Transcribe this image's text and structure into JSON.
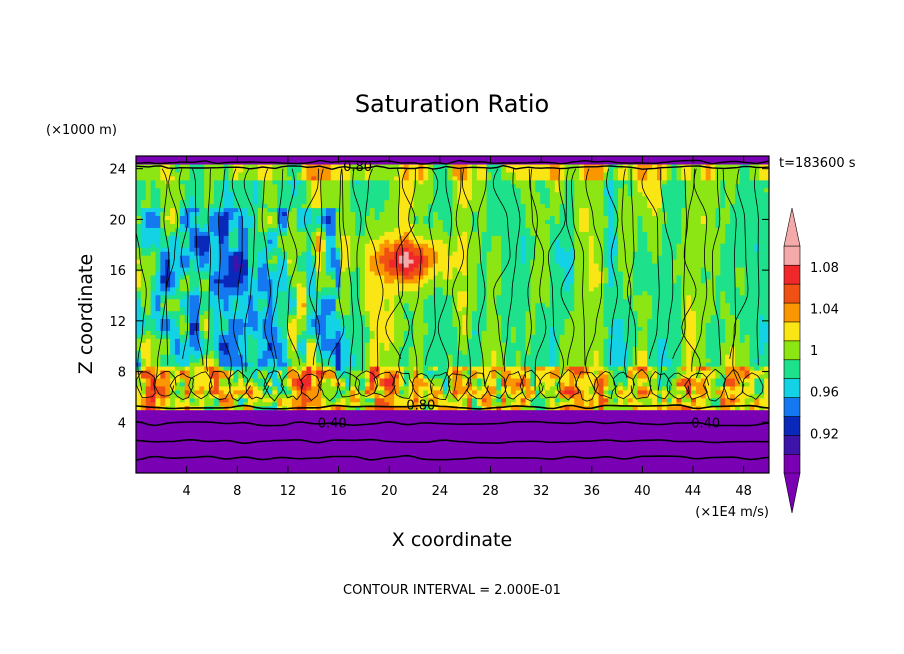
{
  "chart_data": {
    "type": "heatmap",
    "title": "Saturation Ratio",
    "xlabel": "X coordinate",
    "ylabel": "Z coordinate",
    "x_unit": "(×1E4 m/s)",
    "y_unit": "(×1000 m)",
    "time_label": "t=183600 s",
    "footer": "CONTOUR INTERVAL = 2.000E-01",
    "xlim": [
      0,
      50
    ],
    "ylim": [
      0,
      25
    ],
    "x_ticks": [
      4,
      8,
      12,
      16,
      20,
      24,
      28,
      32,
      36,
      40,
      44,
      48
    ],
    "y_ticks": [
      4,
      8,
      12,
      16,
      20,
      24
    ],
    "colorbar": {
      "levels": [
        0.9,
        0.92,
        0.94,
        0.96,
        0.98,
        1.0,
        1.02,
        1.04,
        1.06,
        1.08,
        1.1
      ],
      "tick_labels": [
        "0.92",
        "0.96",
        "1",
        "1.04",
        "1.08"
      ],
      "colors": [
        "#7a00b4",
        "#3c14aa",
        "#0a28b9",
        "#1478f0",
        "#14d2e6",
        "#1ee18c",
        "#8ce614",
        "#fae614",
        "#fa9600",
        "#f05014",
        "#f0282a",
        "#f5aaaa"
      ],
      "under_color": "#7a00b4",
      "over_color": "#f5aaaa"
    },
    "contour_labels": [
      {
        "text": "0.80",
        "x": 17.5,
        "y": 24.2
      },
      {
        "text": "0.80",
        "x": 22.5,
        "y": 5.4
      },
      {
        "text": "0.40",
        "x": 15.5,
        "y": 4.0
      },
      {
        "text": "0.40",
        "x": 45.0,
        "y": 4.0
      }
    ]
  }
}
